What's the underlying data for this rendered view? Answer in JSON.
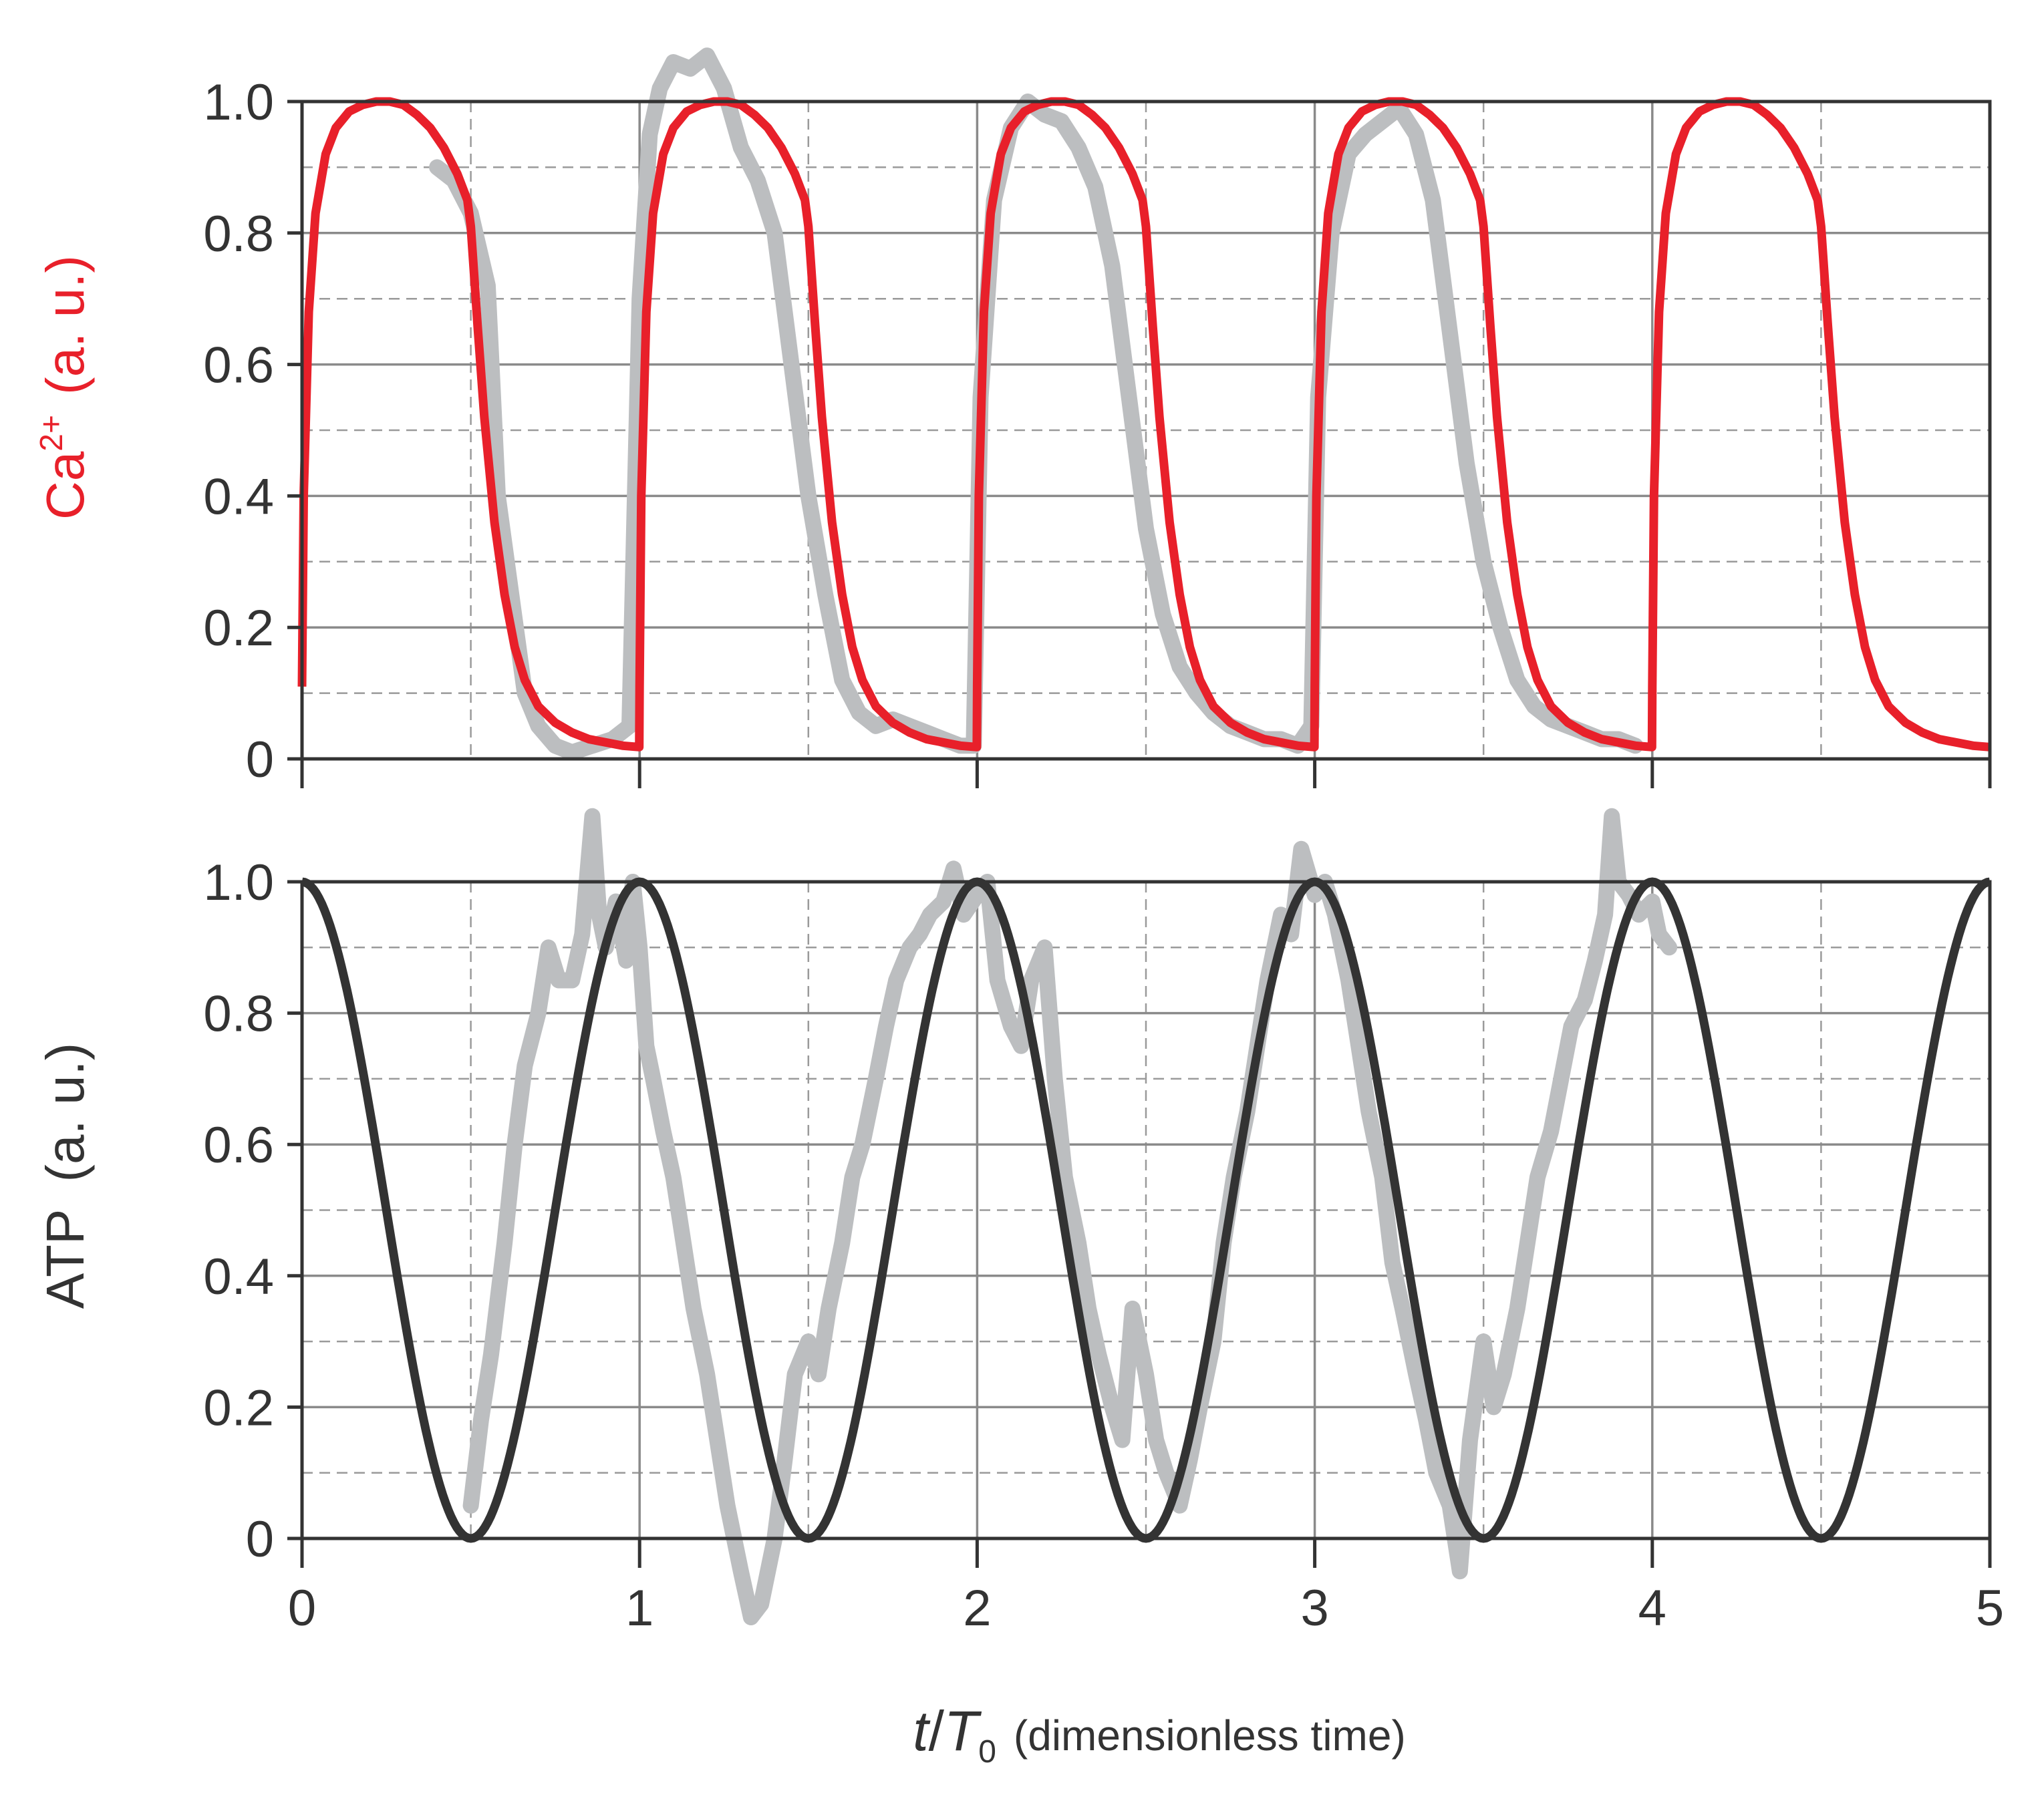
{
  "chart_data": [
    {
      "type": "line",
      "panel": "top",
      "ylabel": {
        "main": "Ca",
        "sup": "2+",
        "unit": "(a. u.)"
      },
      "ylabel_color": "#e8202a",
      "xlim": [
        0,
        5
      ],
      "ylim": [
        0,
        1
      ],
      "x_ticks": [
        0,
        1,
        2,
        3,
        4,
        5
      ],
      "y_ticks": [
        0,
        0.2,
        0.4,
        0.6,
        0.8,
        1.0
      ],
      "y_tick_labels": [
        "0",
        "0.2",
        "0.4",
        "0.6",
        "0.8",
        "1.0"
      ],
      "grid": {
        "major": "solid",
        "minor": "dashed"
      },
      "series": [
        {
          "role": "model",
          "color": "#e8202a",
          "period": 1,
          "x": [
            0,
            0.005,
            0.02,
            0.04,
            0.07,
            0.1,
            0.14,
            0.18,
            0.22,
            0.26,
            0.3,
            0.34,
            0.38,
            0.42,
            0.46,
            0.49,
            0.5,
            0.52,
            0.54,
            0.57,
            0.6,
            0.63,
            0.66,
            0.7,
            0.75,
            0.8,
            0.85,
            0.9,
            0.95,
            0.999
          ],
          "y": [
            0.11,
            0.4,
            0.68,
            0.83,
            0.92,
            0.96,
            0.985,
            0.995,
            1.0,
            1.0,
            0.995,
            0.98,
            0.96,
            0.93,
            0.89,
            0.85,
            0.81,
            0.66,
            0.52,
            0.36,
            0.25,
            0.17,
            0.12,
            0.08,
            0.055,
            0.04,
            0.03,
            0.025,
            0.02,
            0.018
          ]
        },
        {
          "role": "measured",
          "color": "#bcbec0",
          "x": [
            0.4,
            0.45,
            0.5,
            0.55,
            0.58,
            0.62,
            0.66,
            0.7,
            0.75,
            0.8,
            0.86,
            0.92,
            0.97,
            1.0,
            1.03,
            1.06,
            1.1,
            1.15,
            1.2,
            1.25,
            1.3,
            1.35,
            1.4,
            1.45,
            1.5,
            1.55,
            1.6,
            1.65,
            1.7,
            1.75,
            1.8,
            1.85,
            1.9,
            1.95,
            1.99,
            2.01,
            2.05,
            2.1,
            2.15,
            2.2,
            2.25,
            2.3,
            2.35,
            2.4,
            2.45,
            2.5,
            2.55,
            2.6,
            2.65,
            2.7,
            2.75,
            2.8,
            2.85,
            2.9,
            2.95,
            2.99,
            3.01,
            3.05,
            3.1,
            3.15,
            3.2,
            3.25,
            3.3,
            3.35,
            3.4,
            3.45,
            3.5,
            3.55,
            3.6,
            3.65,
            3.7,
            3.75,
            3.8,
            3.85,
            3.9,
            3.95
          ],
          "y": [
            0.9,
            0.88,
            0.83,
            0.72,
            0.4,
            0.25,
            0.1,
            0.05,
            0.02,
            0.01,
            0.02,
            0.03,
            0.05,
            0.7,
            0.95,
            1.02,
            1.06,
            1.05,
            1.07,
            1.02,
            0.93,
            0.88,
            0.8,
            0.6,
            0.4,
            0.25,
            0.12,
            0.07,
            0.05,
            0.06,
            0.05,
            0.04,
            0.03,
            0.02,
            0.02,
            0.55,
            0.85,
            0.96,
            1.0,
            0.98,
            0.97,
            0.93,
            0.87,
            0.75,
            0.55,
            0.35,
            0.22,
            0.14,
            0.1,
            0.07,
            0.05,
            0.04,
            0.03,
            0.03,
            0.02,
            0.05,
            0.55,
            0.8,
            0.92,
            0.95,
            0.97,
            0.99,
            0.95,
            0.85,
            0.65,
            0.45,
            0.3,
            0.2,
            0.12,
            0.08,
            0.06,
            0.05,
            0.04,
            0.03,
            0.03,
            0.02
          ]
        }
      ]
    },
    {
      "type": "line",
      "panel": "bottom",
      "ylabel": {
        "main": "ATP",
        "unit": "(a. u.)"
      },
      "ylabel_color": "#333333",
      "xlabel": {
        "var": "t",
        "slash": "/",
        "T": "T",
        "sub": "0",
        "note": "(dimensionless time)"
      },
      "xlim": [
        0,
        5
      ],
      "ylim": [
        0,
        1
      ],
      "x_ticks": [
        0,
        1,
        2,
        3,
        4,
        5
      ],
      "x_tick_labels": [
        "0",
        "1",
        "2",
        "3",
        "4",
        "5"
      ],
      "y_ticks": [
        0,
        0.2,
        0.4,
        0.6,
        0.8,
        1.0
      ],
      "y_tick_labels": [
        "0",
        "0.2",
        "0.4",
        "0.6",
        "0.8",
        "1.0"
      ],
      "grid": {
        "major": "solid",
        "minor": "dashed"
      },
      "series": [
        {
          "role": "model",
          "color": "#333333",
          "function": "cosine",
          "period": 1,
          "min": 0,
          "max": 1
        },
        {
          "role": "measured",
          "color": "#bcbec0",
          "x": [
            0.5,
            0.53,
            0.56,
            0.6,
            0.63,
            0.66,
            0.7,
            0.73,
            0.76,
            0.8,
            0.83,
            0.86,
            0.88,
            0.9,
            0.93,
            0.96,
            0.98,
            1.0,
            1.02,
            1.04,
            1.07,
            1.1,
            1.13,
            1.16,
            1.2,
            1.23,
            1.26,
            1.3,
            1.33,
            1.36,
            1.38,
            1.4,
            1.43,
            1.46,
            1.5,
            1.53,
            1.56,
            1.6,
            1.63,
            1.66,
            1.7,
            1.73,
            1.76,
            1.8,
            1.83,
            1.86,
            1.9,
            1.93,
            1.96,
            2.0,
            2.03,
            2.06,
            2.1,
            2.13,
            2.16,
            2.2,
            2.23,
            2.26,
            2.3,
            2.33,
            2.36,
            2.4,
            2.43,
            2.46,
            2.5,
            2.53,
            2.56,
            2.6,
            2.63,
            2.66,
            2.7,
            2.73,
            2.76,
            2.8,
            2.83,
            2.86,
            2.9,
            2.93,
            2.96,
            3.0,
            3.03,
            3.06,
            3.1,
            3.13,
            3.16,
            3.2,
            3.23,
            3.26,
            3.3,
            3.33,
            3.36,
            3.4,
            3.43,
            3.46,
            3.5,
            3.53,
            3.56,
            3.6,
            3.63,
            3.66,
            3.7,
            3.73,
            3.76,
            3.8,
            3.83,
            3.86,
            3.88,
            3.9,
            3.93,
            3.96,
            4.0,
            4.02,
            4.05
          ],
          "y": [
            0.05,
            0.18,
            0.28,
            0.45,
            0.6,
            0.72,
            0.8,
            0.9,
            0.85,
            0.85,
            0.92,
            1.1,
            0.95,
            0.9,
            0.97,
            0.88,
            1.0,
            0.9,
            0.75,
            0.7,
            0.62,
            0.55,
            0.45,
            0.35,
            0.25,
            0.15,
            0.05,
            -0.05,
            -0.12,
            -0.1,
            -0.05,
            0.0,
            0.12,
            0.25,
            0.3,
            0.25,
            0.35,
            0.45,
            0.55,
            0.6,
            0.7,
            0.78,
            0.85,
            0.9,
            0.92,
            0.95,
            0.97,
            1.02,
            0.95,
            0.98,
            1.0,
            0.85,
            0.78,
            0.75,
            0.85,
            0.9,
            0.7,
            0.55,
            0.45,
            0.35,
            0.28,
            0.2,
            0.15,
            0.35,
            0.25,
            0.15,
            0.1,
            0.05,
            0.12,
            0.2,
            0.3,
            0.45,
            0.55,
            0.65,
            0.75,
            0.85,
            0.95,
            0.92,
            1.05,
            0.98,
            1.0,
            0.95,
            0.85,
            0.75,
            0.65,
            0.55,
            0.42,
            0.35,
            0.25,
            0.18,
            0.1,
            0.05,
            -0.05,
            0.15,
            0.3,
            0.2,
            0.25,
            0.35,
            0.45,
            0.55,
            0.62,
            0.7,
            0.78,
            0.82,
            0.88,
            0.95,
            1.1,
            1.0,
            0.98,
            0.95,
            0.97,
            0.92,
            0.9
          ]
        }
      ]
    }
  ]
}
